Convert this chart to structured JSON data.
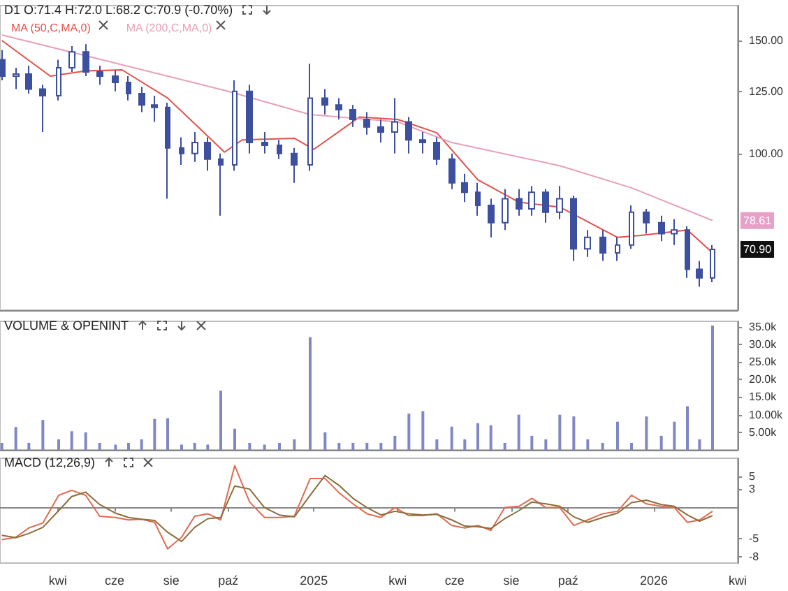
{
  "chart_data": [
    {
      "type": "candlestick",
      "title": "D1 O:71.4 H:72.0 L:68.2 C:70.9 (-0.70%)",
      "color": "#3d4f9f",
      "log": true,
      "legend": "top left",
      "tick_labels": "y",
      "xlim": [
        "2024-01-30",
        "2026-04-01"
      ],
      "ylim": [
        57,
        170
      ],
      "yticks": [
        {
          "value": 100,
          "label": "100.00"
        },
        {
          "value": 125,
          "label": "125.00"
        },
        {
          "value": 150,
          "label": "150.00"
        }
      ],
      "x": [
        "2024-02-01",
        "2024-02-16",
        "2024-03-01",
        "2024-03-16",
        "2024-04-02",
        "2024-04-16",
        "2024-05-01",
        "2024-05-16",
        "2024-06-02",
        "2024-06-16",
        "2024-06-30",
        "2024-07-14",
        "2024-07-28",
        "2024-08-12",
        "2024-08-26",
        "2024-09-09",
        "2024-09-23",
        "2024-10-08",
        "2024-10-24",
        "2024-11-09",
        "2024-11-25",
        "2024-12-11",
        "2024-12-28",
        "2025-01-13",
        "2025-01-28",
        "2025-02-12",
        "2025-02-27",
        "2025-03-14",
        "2025-03-29",
        "2025-04-13",
        "2025-04-28",
        "2025-05-13",
        "2025-05-29",
        "2025-06-12",
        "2025-06-26",
        "2025-07-10",
        "2025-07-25",
        "2025-08-09",
        "2025-08-23",
        "2025-09-07",
        "2025-09-22",
        "2025-10-07",
        "2025-10-22",
        "2025-11-07",
        "2025-11-23",
        "2025-12-08",
        "2025-12-24",
        "2026-01-09",
        "2026-01-23",
        "2026-02-06",
        "2026-02-19",
        "2026-03-05"
      ],
      "ohlc": [
        [
          140,
          145,
          130,
          132
        ],
        [
          132,
          136,
          126,
          133
        ],
        [
          133,
          137,
          124,
          126
        ],
        [
          126,
          128,
          108,
          123
        ],
        [
          123,
          140,
          121,
          136
        ],
        [
          136,
          147,
          134,
          144
        ],
        [
          144,
          148,
          132,
          134
        ],
        [
          134,
          137,
          128,
          132
        ],
        [
          132,
          135,
          125,
          129
        ],
        [
          129,
          132,
          121,
          124
        ],
        [
          124,
          127,
          116,
          119
        ],
        [
          119,
          123,
          112,
          118
        ],
        [
          118,
          120,
          85,
          102
        ],
        [
          102,
          106,
          96,
          100
        ],
        [
          100,
          108,
          97,
          104
        ],
        [
          104,
          106,
          94,
          98
        ],
        [
          98,
          100,
          80,
          96
        ],
        [
          96,
          130,
          94,
          125
        ],
        [
          125,
          128,
          100,
          104
        ],
        [
          104,
          108,
          100,
          103
        ],
        [
          103,
          105,
          98,
          100
        ],
        [
          100,
          102,
          90,
          96
        ],
        [
          96,
          138,
          94,
          122
        ],
        [
          122,
          126,
          115,
          119
        ],
        [
          119,
          122,
          113,
          117
        ],
        [
          117,
          119,
          110,
          113
        ],
        [
          113,
          116,
          107,
          110
        ],
        [
          110,
          113,
          104,
          108
        ],
        [
          108,
          122,
          100,
          112
        ],
        [
          112,
          114,
          100,
          105
        ],
        [
          105,
          108,
          100,
          104
        ],
        [
          104,
          106,
          96,
          98
        ],
        [
          98,
          100,
          88,
          90
        ],
        [
          90,
          93,
          84,
          87
        ],
        [
          87,
          90,
          80,
          83
        ],
        [
          83,
          85,
          74,
          78
        ],
        [
          78,
          88,
          76,
          85
        ],
        [
          85,
          88,
          80,
          82
        ],
        [
          82,
          89,
          80,
          87
        ],
        [
          87,
          88,
          78,
          81
        ],
        [
          81,
          89,
          79,
          85
        ],
        [
          85,
          86,
          68,
          71
        ],
        [
          71,
          76,
          69,
          74
        ],
        [
          74,
          76,
          68,
          70
        ],
        [
          70,
          74,
          68,
          72
        ],
        [
          72,
          83,
          71,
          81
        ],
        [
          81,
          82,
          75,
          78
        ],
        [
          78,
          80,
          73,
          75
        ],
        [
          75,
          79,
          72,
          76
        ],
        [
          76,
          77,
          64,
          66
        ],
        [
          66,
          68,
          62,
          64
        ],
        [
          64,
          72,
          63,
          70.9
        ]
      ],
      "series": [
        {
          "name": "MA (50,C,MA,0)",
          "type": "line",
          "color": "#e0524a",
          "x": [
            "2024-02-01",
            "2024-03-24",
            "2024-05-01",
            "2024-06-09",
            "2024-07-28",
            "2024-09-27",
            "2024-10-16",
            "2024-12-11",
            "2025-01-01",
            "2025-02-19",
            "2025-04-01",
            "2025-05-13",
            "2025-06-26",
            "2025-08-09",
            "2025-09-22",
            "2025-11-23",
            "2025-12-16",
            "2026-02-06",
            "2026-03-05"
          ],
          "values": [
            150,
            132,
            134.5,
            135,
            122,
            100.5,
            105,
            105.6,
            101.5,
            114,
            113,
            107.7,
            91,
            84,
            82.5,
            74,
            74.5,
            76,
            70
          ]
        },
        {
          "name": "MA (200,C,MA,0)",
          "type": "line",
          "color": "#e8a0b8",
          "x": [
            "2024-02-01",
            "2024-05-01",
            "2024-10-01",
            "2024-12-28",
            "2025-04-01",
            "2025-05-29",
            "2025-09-22",
            "2025-12-08",
            "2026-03-05"
          ],
          "values": [
            153,
            142,
            125,
            115,
            112,
            104,
            95.7,
            88.4,
            78.61
          ]
        }
      ],
      "annotations": [
        {
          "text": "78.61",
          "y": 78.61
        },
        {
          "text": "70.90",
          "y": 70.9
        }
      ]
    },
    {
      "type": "bar",
      "title": "VOLUME & OPENINT",
      "color": "#8088c4",
      "tick_labels": "y",
      "xlim": [
        "2024-01-30",
        "2026-04-01"
      ],
      "ylim": [
        0,
        36.5
      ],
      "yticks": [
        {
          "value": 5,
          "label": "5.00k"
        },
        {
          "value": 10,
          "label": "10.00k"
        },
        {
          "value": 15,
          "label": "15.0k"
        },
        {
          "value": 20,
          "label": "20.0k"
        },
        {
          "value": 25,
          "label": "25.0k"
        },
        {
          "value": 30,
          "label": "30.0k"
        },
        {
          "value": 35,
          "label": "35.0k"
        }
      ],
      "x": [
        "2024-02-01",
        "2024-02-16",
        "2024-03-01",
        "2024-03-16",
        "2024-04-02",
        "2024-04-16",
        "2024-05-01",
        "2024-05-16",
        "2024-06-02",
        "2024-06-16",
        "2024-06-30",
        "2024-07-14",
        "2024-07-28",
        "2024-08-12",
        "2024-08-26",
        "2024-09-09",
        "2024-09-23",
        "2024-10-08",
        "2024-10-24",
        "2024-11-09",
        "2024-11-25",
        "2024-12-11",
        "2024-12-28",
        "2025-01-13",
        "2025-01-28",
        "2025-02-12",
        "2025-02-27",
        "2025-03-14",
        "2025-03-29",
        "2025-04-13",
        "2025-04-28",
        "2025-05-13",
        "2025-05-29",
        "2025-06-12",
        "2025-06-26",
        "2025-07-10",
        "2025-07-25",
        "2025-08-09",
        "2025-08-23",
        "2025-09-07",
        "2025-09-22",
        "2025-10-07",
        "2025-10-22",
        "2025-11-07",
        "2025-11-23",
        "2025-12-08",
        "2025-12-24",
        "2026-01-09",
        "2026-01-23",
        "2026-02-06",
        "2026-02-19",
        "2026-03-05"
      ],
      "values": [
        2,
        6.5,
        2,
        8.5,
        3,
        5.3,
        5,
        2,
        1.5,
        2,
        3,
        8.8,
        9,
        1.5,
        2,
        1.5,
        16.8,
        6,
        2,
        1.5,
        2,
        3,
        32,
        5,
        2,
        2,
        2,
        2,
        4,
        10.3,
        11,
        3,
        6.6,
        3,
        7.6,
        7,
        2,
        10,
        4,
        3,
        10,
        9.5,
        3,
        2,
        8,
        2,
        9.5,
        4,
        8,
        12.4,
        3,
        35.3
      ]
    },
    {
      "type": "line",
      "title": "MACD (12,26,9)",
      "xlim": [
        "2024-01-30",
        "2026-04-01"
      ],
      "xticks": [
        {
          "value": "2024-04-01",
          "label": "kwi"
        },
        {
          "value": "2024-06-01",
          "label": "cze"
        },
        {
          "value": "2024-08-01",
          "label": "sie"
        },
        {
          "value": "2024-10-01",
          "label": "paź"
        },
        {
          "value": "2025-01-01",
          "label": "2025"
        },
        {
          "value": "2025-04-01",
          "label": "kwi"
        },
        {
          "value": "2025-06-01",
          "label": "cze"
        },
        {
          "value": "2025-08-01",
          "label": "sie"
        },
        {
          "value": "2025-10-01",
          "label": "paź"
        },
        {
          "value": "2026-01-01",
          "label": "2026"
        },
        {
          "value": "2026-04-01",
          "label": "kwi"
        }
      ],
      "ylim": [
        -9,
        8
      ],
      "yticks": [
        -8,
        -5,
        3,
        5
      ],
      "x": [
        "2024-02-01",
        "2024-02-16",
        "2024-03-01",
        "2024-03-16",
        "2024-04-02",
        "2024-04-16",
        "2024-05-01",
        "2024-05-16",
        "2024-06-02",
        "2024-06-16",
        "2024-06-30",
        "2024-07-14",
        "2024-07-28",
        "2024-08-12",
        "2024-08-26",
        "2024-09-09",
        "2024-09-23",
        "2024-10-08",
        "2024-10-24",
        "2024-11-09",
        "2024-11-25",
        "2024-12-11",
        "2024-12-28",
        "2025-01-13",
        "2025-01-28",
        "2025-02-12",
        "2025-02-27",
        "2025-03-14",
        "2025-03-29",
        "2025-04-13",
        "2025-04-28",
        "2025-05-13",
        "2025-05-29",
        "2025-06-12",
        "2025-06-26",
        "2025-07-10",
        "2025-07-25",
        "2025-08-09",
        "2025-08-23",
        "2025-09-07",
        "2025-09-22",
        "2025-10-07",
        "2025-10-22",
        "2025-11-07",
        "2025-11-23",
        "2025-12-08",
        "2025-12-24",
        "2026-01-09",
        "2026-01-23",
        "2026-02-06",
        "2026-02-19",
        "2026-03-05"
      ],
      "series": [
        {
          "color": "#e06a50",
          "values": [
            -5.2,
            -4.8,
            -3.3,
            -2.5,
            2.0,
            2.8,
            2.0,
            -1.4,
            -1.6,
            -2.0,
            -1.9,
            -2.4,
            -6.7,
            -4.8,
            -1.4,
            -1.0,
            -2.0,
            6.8,
            0.9,
            -1.6,
            -1.6,
            -1.4,
            4.7,
            4.7,
            2.4,
            0.6,
            -1.0,
            -1.6,
            0,
            -1.3,
            -1.3,
            -1.0,
            -2.9,
            -3.3,
            -2.9,
            -3.7,
            0,
            0.2,
            1.5,
            0,
            0,
            -2.9,
            -2.0,
            -1.0,
            -0.6,
            2.0,
            0.6,
            0.2,
            0,
            -2.4,
            -2.0,
            -0.6
          ]
        },
        {
          "color": "#8c6d3c",
          "values": [
            -4.5,
            -4.9,
            -4.2,
            -3.2,
            -0.5,
            1.8,
            2.5,
            0.5,
            -0.9,
            -1.6,
            -1.9,
            -2.1,
            -4.0,
            -5.5,
            -3.2,
            -1.8,
            -1.6,
            3.5,
            3.0,
            0.0,
            -1.2,
            -1.5,
            2.0,
            5.2,
            3.6,
            1.5,
            0.0,
            -1.2,
            -0.6,
            -1.0,
            -1.2,
            -1.1,
            -2.0,
            -3.0,
            -3.1,
            -3.4,
            -1.8,
            -0.5,
            0.9,
            0.6,
            0.2,
            -1.5,
            -2.4,
            -1.6,
            -0.9,
            0.8,
            1.2,
            0.5,
            0.2,
            -1.2,
            -2.2,
            -1.3
          ]
        }
      ]
    }
  ]
}
